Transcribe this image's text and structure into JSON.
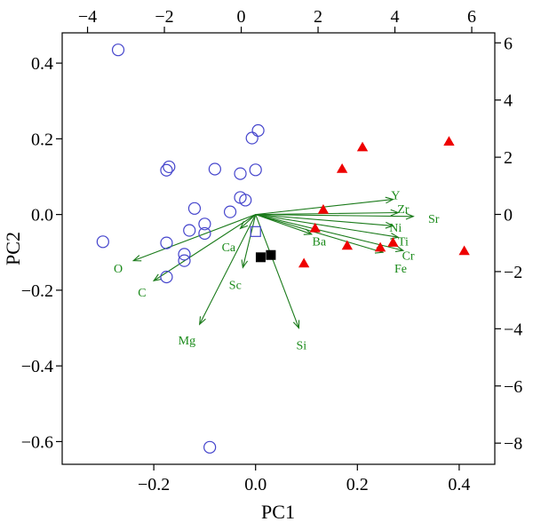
{
  "chart_data": {
    "type": "scatter",
    "title": "",
    "xlabel": "PC1",
    "ylabel": "PC2",
    "xlim": [
      -0.38,
      0.47
    ],
    "ylim": [
      -0.66,
      0.48
    ],
    "x_ticks": [
      -0.2,
      0.0,
      0.2,
      0.4
    ],
    "y_ticks": [
      -0.6,
      -0.4,
      -0.2,
      0.0,
      0.2,
      0.4
    ],
    "x_tick_labels": [
      "−0.2",
      "0.0",
      "0.2",
      "0.4"
    ],
    "y_tick_labels": [
      "−0.6",
      "−0.4",
      "−0.2",
      "0.0",
      "0.2",
      "0.4"
    ],
    "secondary_xlim": [
      -4.66,
      6.6
    ],
    "secondary_ylim": [
      -8.74,
      6.35
    ],
    "secondary_x_ticks": [
      -4,
      -2,
      0,
      2,
      4,
      6
    ],
    "secondary_y_ticks": [
      -8,
      -6,
      -4,
      -2,
      0,
      2,
      4,
      6
    ],
    "secondary_x_tick_labels": [
      "−4",
      "−2",
      "0",
      "2",
      "4",
      "6"
    ],
    "secondary_y_tick_labels": [
      "−8",
      "−6",
      "−4",
      "−2",
      "0",
      "2",
      "4",
      "6"
    ],
    "grid": false,
    "colors": {
      "circle": "#4444cc",
      "triangle": "#ee0000",
      "square": "#000000",
      "open_square": "#4444cc",
      "arrow": "#1a7a1a",
      "arrow_label": "#1a8a1a"
    },
    "series": [
      {
        "marker": "open-circle",
        "points": [
          [
            -0.27,
            0.435
          ],
          [
            0.005,
            0.222
          ],
          [
            -0.007,
            0.202
          ],
          [
            -0.175,
            0.117
          ],
          [
            -0.17,
            0.126
          ],
          [
            -0.08,
            0.12
          ],
          [
            -0.03,
            0.108
          ],
          [
            0.0,
            0.118
          ],
          [
            -0.03,
            0.045
          ],
          [
            -0.02,
            0.038
          ],
          [
            -0.12,
            0.016
          ],
          [
            -0.05,
            0.007
          ],
          [
            -0.1,
            -0.025
          ],
          [
            -0.13,
            -0.042
          ],
          [
            -0.1,
            -0.05
          ],
          [
            -0.3,
            -0.072
          ],
          [
            -0.175,
            -0.075
          ],
          [
            -0.14,
            -0.105
          ],
          [
            -0.14,
            -0.122
          ],
          [
            -0.175,
            -0.165
          ],
          [
            -0.09,
            -0.615
          ]
        ]
      },
      {
        "marker": "filled-triangle",
        "points": [
          [
            0.38,
            0.192
          ],
          [
            0.21,
            0.177
          ],
          [
            0.17,
            0.12
          ],
          [
            0.133,
            0.012
          ],
          [
            0.117,
            -0.037
          ],
          [
            0.18,
            -0.083
          ],
          [
            0.27,
            -0.075
          ],
          [
            0.245,
            -0.088
          ],
          [
            0.41,
            -0.097
          ],
          [
            0.095,
            -0.13
          ]
        ]
      },
      {
        "marker": "filled-square",
        "points": [
          [
            0.01,
            -0.113
          ],
          [
            0.03,
            -0.107
          ]
        ]
      },
      {
        "marker": "open-square",
        "points": [
          [
            0.0,
            -0.045
          ]
        ]
      }
    ],
    "loadings": [
      {
        "name": "Y",
        "x": 0.27,
        "y": 0.04,
        "lx": 0.275,
        "ly": 0.052
      },
      {
        "name": "Zr",
        "x": 0.28,
        "y": 0.005,
        "lx": 0.29,
        "ly": 0.016
      },
      {
        "name": "Sr",
        "x": 0.31,
        "y": -0.005,
        "lx": 0.35,
        "ly": -0.01
      },
      {
        "name": "Ni",
        "x": 0.27,
        "y": -0.03,
        "lx": 0.275,
        "ly": -0.034
      },
      {
        "name": "Ti",
        "x": 0.28,
        "y": -0.06,
        "lx": 0.29,
        "ly": -0.07
      },
      {
        "name": "Cr",
        "x": 0.29,
        "y": -0.095,
        "lx": 0.3,
        "ly": -0.108
      },
      {
        "name": "Fe",
        "x": 0.25,
        "y": -0.1,
        "lx": 0.285,
        "ly": -0.142
      },
      {
        "name": "Ba",
        "x": 0.11,
        "y": -0.052,
        "lx": 0.125,
        "ly": -0.07
      },
      {
        "name": "Ca",
        "x": -0.03,
        "y": -0.037,
        "lx": -0.053,
        "ly": -0.085
      },
      {
        "name": "Sc",
        "x": -0.025,
        "y": -0.14,
        "lx": -0.04,
        "ly": -0.185
      },
      {
        "name": "Mg",
        "x": -0.11,
        "y": -0.29,
        "lx": -0.135,
        "ly": -0.332
      },
      {
        "name": "Si",
        "x": 0.085,
        "y": -0.3,
        "lx": 0.09,
        "ly": -0.345
      },
      {
        "name": "O",
        "x": -0.24,
        "y": -0.122,
        "lx": -0.27,
        "ly": -0.142
      },
      {
        "name": "C",
        "x": -0.2,
        "y": -0.175,
        "lx": -0.223,
        "ly": -0.205
      }
    ]
  }
}
